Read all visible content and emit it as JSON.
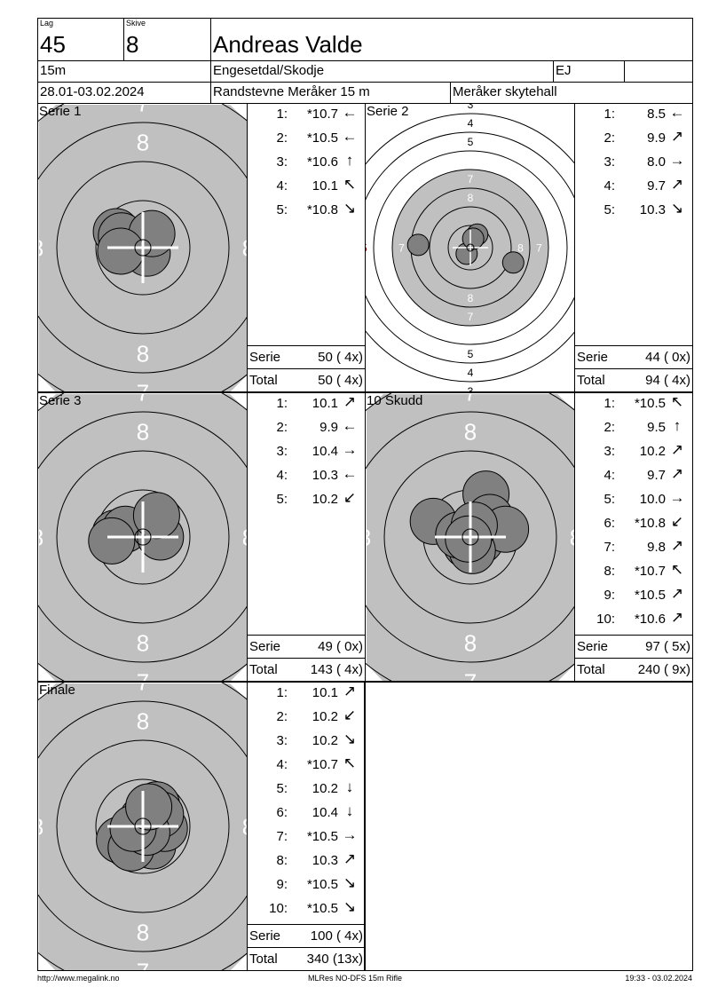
{
  "header": {
    "lag_label": "Lag",
    "lag": "45",
    "skive_label": "Skive",
    "skive": "8",
    "name": "Andreas Valde",
    "distance": "15m",
    "club": "Engesetdal/Skodje",
    "class": "EJ",
    "extra": "",
    "date": "28.01-03.02.2024",
    "event": "Randstevne Meråker 15 m",
    "venue": "Meråker skytehall"
  },
  "colors": {
    "target_gray": "#c0c0c0",
    "shot_fill": "#808080",
    "crosshair": "#ffffff"
  },
  "panels": [
    {
      "title": "Serie 1",
      "zoom": "close",
      "shots": [
        {
          "n": "1:",
          "v": "*10.7",
          "dir": "arrow-left"
        },
        {
          "n": "2:",
          "v": "*10.5",
          "dir": "arrow-left"
        },
        {
          "n": "3:",
          "v": "*10.6",
          "dir": "arrow-up"
        },
        {
          "n": "4:",
          "v": "10.1",
          "dir": "arrow-up-left"
        },
        {
          "n": "5:",
          "v": "*10.8",
          "dir": "arrow-down-right"
        }
      ],
      "serie_label": "Serie",
      "serie": "50 ( 4x)",
      "total_label": "Total",
      "total": "50 ( 4x)"
    },
    {
      "title": "Serie 2",
      "zoom": "wide",
      "shots": [
        {
          "n": "1:",
          "v": "8.5",
          "dir": "arrow-left"
        },
        {
          "n": "2:",
          "v": "9.9",
          "dir": "arrow-up-right"
        },
        {
          "n": "3:",
          "v": "8.0",
          "dir": "arrow-right"
        },
        {
          "n": "4:",
          "v": "9.7",
          "dir": "arrow-up-right"
        },
        {
          "n": "5:",
          "v": "10.3",
          "dir": "arrow-down-right"
        }
      ],
      "serie_label": "Serie",
      "serie": "44 ( 0x)",
      "total_label": "Total",
      "total": "94 ( 4x)"
    },
    {
      "title": "Serie 3",
      "zoom": "close",
      "shots": [
        {
          "n": "1:",
          "v": "10.1",
          "dir": "arrow-up-right"
        },
        {
          "n": "2:",
          "v": "9.9",
          "dir": "arrow-left"
        },
        {
          "n": "3:",
          "v": "10.4",
          "dir": "arrow-right"
        },
        {
          "n": "4:",
          "v": "10.3",
          "dir": "arrow-left"
        },
        {
          "n": "5:",
          "v": "10.2",
          "dir": "arrow-down-left"
        }
      ],
      "serie_label": "Serie",
      "serie": "49 ( 0x)",
      "total_label": "Total",
      "total": "143 ( 4x)"
    },
    {
      "title": "10 Skudd",
      "zoom": "close",
      "shots": [
        {
          "n": "1:",
          "v": "*10.5",
          "dir": "arrow-up-left"
        },
        {
          "n": "2:",
          "v": "9.5",
          "dir": "arrow-up"
        },
        {
          "n": "3:",
          "v": "10.2",
          "dir": "arrow-up-right"
        },
        {
          "n": "4:",
          "v": "9.7",
          "dir": "arrow-up-right"
        },
        {
          "n": "5:",
          "v": "10.0",
          "dir": "arrow-right"
        },
        {
          "n": "6:",
          "v": "*10.8",
          "dir": "arrow-down-left"
        },
        {
          "n": "7:",
          "v": "9.8",
          "dir": "arrow-up-right"
        },
        {
          "n": "8:",
          "v": "*10.7",
          "dir": "arrow-up-left"
        },
        {
          "n": "9:",
          "v": "*10.5",
          "dir": "arrow-up-right"
        },
        {
          "n": "10:",
          "v": "*10.6",
          "dir": "arrow-up-right"
        }
      ],
      "serie_label": "Serie",
      "serie": "97 ( 5x)",
      "total_label": "Total",
      "total": "240 ( 9x)"
    },
    {
      "title": "Finale",
      "zoom": "close",
      "shots": [
        {
          "n": "1:",
          "v": "10.1",
          "dir": "arrow-up-right"
        },
        {
          "n": "2:",
          "v": "10.2",
          "dir": "arrow-down-left"
        },
        {
          "n": "3:",
          "v": "10.2",
          "dir": "arrow-down-right"
        },
        {
          "n": "4:",
          "v": "*10.7",
          "dir": "arrow-up-left"
        },
        {
          "n": "5:",
          "v": "10.2",
          "dir": "arrow-down"
        },
        {
          "n": "6:",
          "v": "10.4",
          "dir": "arrow-down"
        },
        {
          "n": "7:",
          "v": "*10.5",
          "dir": "arrow-right"
        },
        {
          "n": "8:",
          "v": "10.3",
          "dir": "arrow-up-right"
        },
        {
          "n": "9:",
          "v": "*10.5",
          "dir": "arrow-down-right"
        },
        {
          "n": "10:",
          "v": "*10.5",
          "dir": "arrow-down-right"
        }
      ],
      "serie_label": "Serie",
      "serie": "100 ( 4x)",
      "total_label": "Total",
      "total": "340 (13x)"
    }
  ],
  "footer": {
    "left": "http://www.megalink.no",
    "center": "MLRes NO-DFS 15m Rifle",
    "right": "19:33 - 03.02.2024"
  }
}
